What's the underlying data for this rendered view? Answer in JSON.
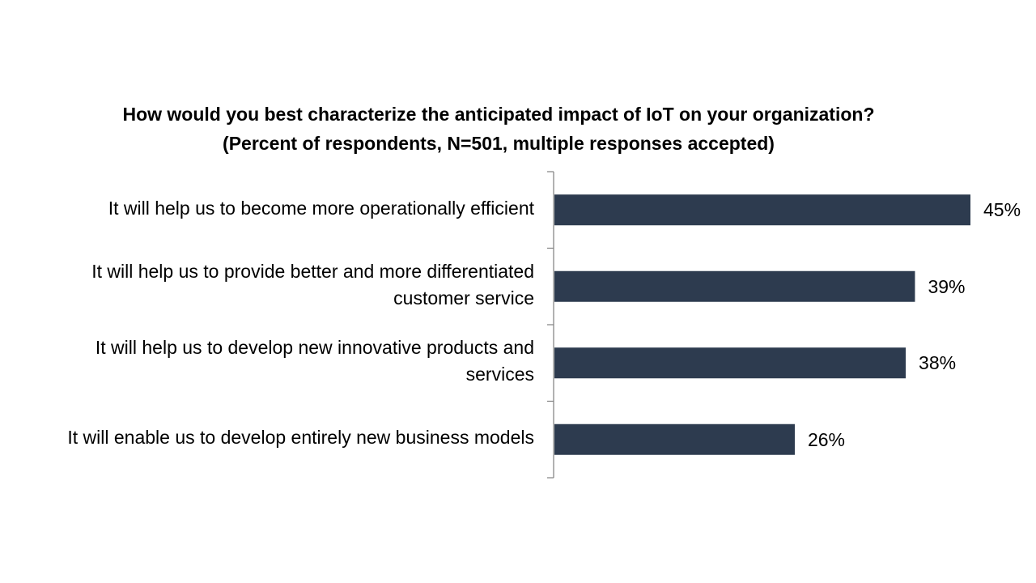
{
  "chart_data": {
    "type": "bar",
    "orientation": "horizontal",
    "title": "How would you best characterize the anticipated impact of IoT on your organization?",
    "subtitle": "(Percent of respondents, N=501, multiple responses accepted)",
    "categories": [
      [
        "It will help us to become more operationally efficient"
      ],
      [
        "It will help us to provide better and more differentiated",
        "customer service"
      ],
      [
        "It will help us to develop new innovative products and",
        "services"
      ],
      [
        "It will enable us to develop entirely new business models"
      ]
    ],
    "values": [
      45,
      39,
      38,
      26
    ],
    "value_labels": [
      "45%",
      "39%",
      "38%",
      "26%"
    ],
    "bar_color": "#2d3b4f",
    "axis_color": "#808080",
    "xlim": [
      0,
      45
    ],
    "grid": false,
    "legend": "none"
  }
}
